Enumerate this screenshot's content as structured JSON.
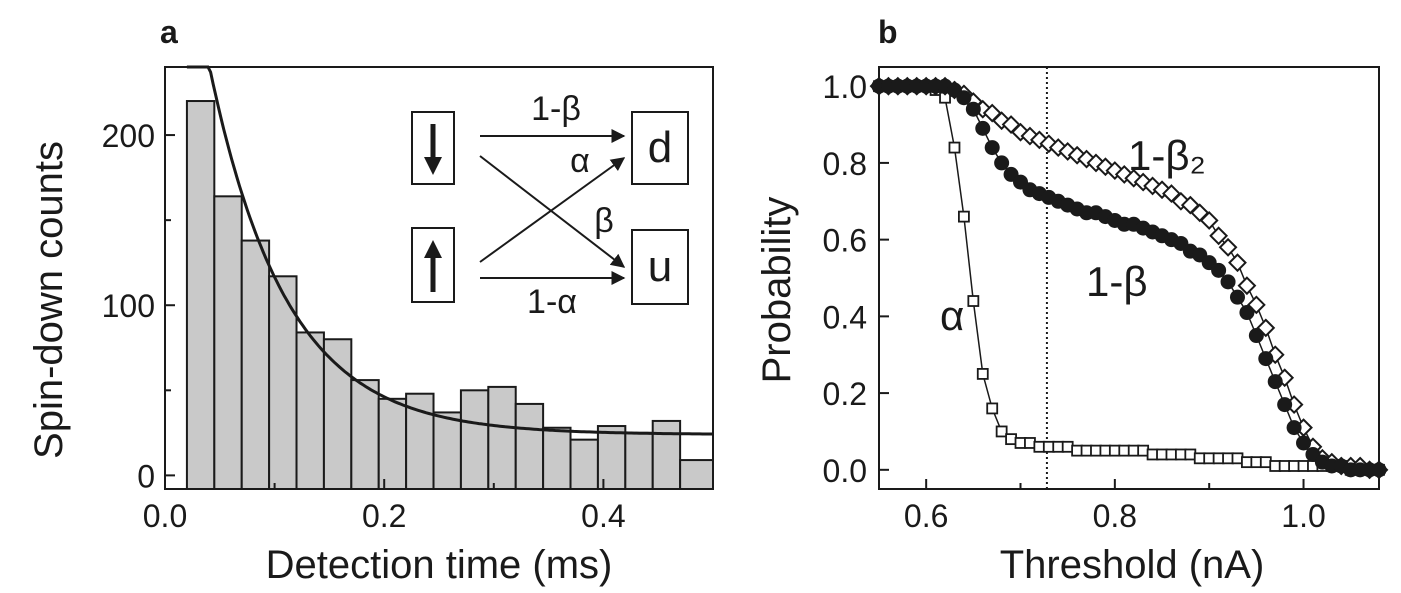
{
  "chart_data": [
    {
      "panel": "a",
      "type": "bar",
      "xlabel": "Detection time (ms)",
      "ylabel": "Spin-down counts",
      "xlim": [
        0.0,
        0.5
      ],
      "ylim": [
        -8,
        240
      ],
      "xticks": [
        0.0,
        0.2,
        0.4
      ],
      "xtick_labels": [
        "0.0",
        "0.2",
        "0.4"
      ],
      "yticks": [
        0,
        100,
        200
      ],
      "ytick_labels": [
        "0",
        "100",
        "200"
      ],
      "bin_edges": [
        0.02,
        0.045,
        0.07,
        0.095,
        0.12,
        0.145,
        0.17,
        0.195,
        0.22,
        0.245,
        0.27,
        0.295,
        0.32,
        0.345,
        0.37,
        0.395,
        0.42,
        0.445,
        0.47,
        0.5
      ],
      "values": [
        220,
        164,
        138,
        117,
        84,
        80,
        56,
        45,
        48,
        37,
        50,
        52,
        42,
        28,
        21,
        29,
        25,
        32,
        9
      ],
      "bar_color": "#c9c9c9",
      "fit": {
        "type": "exponential",
        "amplitude": 290,
        "tau": 0.07,
        "offset": 24,
        "x_start": 0.02,
        "x_end": 0.5
      },
      "inset": {
        "state_down_icon": "down-arrow-icon",
        "state_up_icon": "up-arrow-icon",
        "outcome_d": "d",
        "outcome_u": "u",
        "label_1_beta": "1-β",
        "label_alpha": "α",
        "label_beta": "β",
        "label_1_alpha": "1-α"
      }
    },
    {
      "panel": "b",
      "type": "scatter",
      "xlabel": "Threshold (nA)",
      "ylabel": "Probability",
      "xlim": [
        0.55,
        1.08
      ],
      "ylim": [
        -0.05,
        1.05
      ],
      "xticks": [
        0.6,
        0.8,
        1.0
      ],
      "xtick_labels": [
        "0.6",
        "0.8",
        "1.0"
      ],
      "yticks": [
        0.0,
        0.2,
        0.4,
        0.6,
        0.8,
        1.0
      ],
      "ytick_labels": [
        "0.0",
        "0.2",
        "0.4",
        "0.6",
        "0.8",
        "1.0"
      ],
      "threshold_line": 0.728,
      "series": [
        {
          "name": "1-β₂",
          "marker": "diamond-open",
          "x": [
            0.55,
            0.56,
            0.57,
            0.58,
            0.59,
            0.6,
            0.61,
            0.62,
            0.63,
            0.64,
            0.65,
            0.66,
            0.67,
            0.68,
            0.69,
            0.7,
            0.71,
            0.72,
            0.73,
            0.74,
            0.75,
            0.76,
            0.77,
            0.78,
            0.79,
            0.8,
            0.81,
            0.82,
            0.83,
            0.84,
            0.85,
            0.86,
            0.87,
            0.88,
            0.89,
            0.9,
            0.91,
            0.92,
            0.93,
            0.94,
            0.95,
            0.96,
            0.97,
            0.98,
            0.99,
            1.0,
            1.01,
            1.02,
            1.03,
            1.04,
            1.05,
            1.06,
            1.07,
            1.08
          ],
          "y": [
            1.0,
            1.0,
            1.0,
            1.0,
            1.0,
            1.0,
            1.0,
            1.0,
            0.99,
            0.98,
            0.96,
            0.94,
            0.93,
            0.91,
            0.9,
            0.88,
            0.87,
            0.86,
            0.85,
            0.84,
            0.83,
            0.82,
            0.81,
            0.8,
            0.79,
            0.78,
            0.77,
            0.76,
            0.75,
            0.74,
            0.73,
            0.72,
            0.7,
            0.69,
            0.67,
            0.65,
            0.61,
            0.58,
            0.54,
            0.48,
            0.43,
            0.37,
            0.3,
            0.24,
            0.17,
            0.11,
            0.06,
            0.03,
            0.02,
            0.01,
            0.01,
            0.01,
            0.0,
            0.0
          ]
        },
        {
          "name": "1-β",
          "marker": "circle-filled",
          "x": [
            0.55,
            0.56,
            0.57,
            0.58,
            0.59,
            0.6,
            0.61,
            0.62,
            0.63,
            0.64,
            0.65,
            0.66,
            0.67,
            0.68,
            0.69,
            0.7,
            0.71,
            0.72,
            0.73,
            0.74,
            0.75,
            0.76,
            0.77,
            0.78,
            0.79,
            0.8,
            0.81,
            0.82,
            0.83,
            0.84,
            0.85,
            0.86,
            0.87,
            0.88,
            0.89,
            0.9,
            0.91,
            0.92,
            0.93,
            0.94,
            0.95,
            0.96,
            0.97,
            0.98,
            0.99,
            1.0,
            1.01,
            1.02,
            1.03,
            1.04,
            1.05,
            1.06,
            1.07,
            1.08
          ],
          "y": [
            1.0,
            1.0,
            1.0,
            1.0,
            1.0,
            1.0,
            1.0,
            1.0,
            0.99,
            0.97,
            0.94,
            0.89,
            0.84,
            0.8,
            0.77,
            0.75,
            0.73,
            0.72,
            0.71,
            0.7,
            0.69,
            0.68,
            0.67,
            0.67,
            0.66,
            0.65,
            0.64,
            0.64,
            0.63,
            0.62,
            0.61,
            0.6,
            0.59,
            0.57,
            0.56,
            0.54,
            0.52,
            0.49,
            0.45,
            0.41,
            0.35,
            0.29,
            0.23,
            0.17,
            0.11,
            0.07,
            0.04,
            0.02,
            0.01,
            0.01,
            0.0,
            0.0,
            0.0,
            0.0
          ]
        },
        {
          "name": "α",
          "marker": "square-open",
          "x": [
            0.55,
            0.56,
            0.57,
            0.58,
            0.59,
            0.6,
            0.61,
            0.62,
            0.63,
            0.64,
            0.65,
            0.66,
            0.67,
            0.68,
            0.69,
            0.7,
            0.71,
            0.72,
            0.73,
            0.74,
            0.75,
            0.76,
            0.77,
            0.78,
            0.79,
            0.8,
            0.81,
            0.82,
            0.83,
            0.84,
            0.85,
            0.86,
            0.87,
            0.88,
            0.89,
            0.9,
            0.91,
            0.92,
            0.93,
            0.94,
            0.95,
            0.96,
            0.97,
            0.98,
            0.99,
            1.0,
            1.01,
            1.02,
            1.03,
            1.04,
            1.05,
            1.06,
            1.07,
            1.08
          ],
          "y": [
            1.0,
            1.0,
            1.0,
            1.0,
            1.0,
            1.0,
            0.99,
            0.97,
            0.84,
            0.66,
            0.44,
            0.25,
            0.16,
            0.1,
            0.08,
            0.07,
            0.07,
            0.06,
            0.06,
            0.06,
            0.06,
            0.05,
            0.05,
            0.05,
            0.05,
            0.05,
            0.05,
            0.05,
            0.05,
            0.04,
            0.04,
            0.04,
            0.04,
            0.04,
            0.03,
            0.03,
            0.03,
            0.03,
            0.03,
            0.02,
            0.02,
            0.02,
            0.01,
            0.01,
            0.01,
            0.01,
            0.01,
            0.01,
            0.01,
            0.01,
            0.0,
            0.0,
            0.0,
            0.0
          ]
        }
      ],
      "annotations": [
        "1-β₂",
        "1-β",
        "α"
      ]
    }
  ]
}
